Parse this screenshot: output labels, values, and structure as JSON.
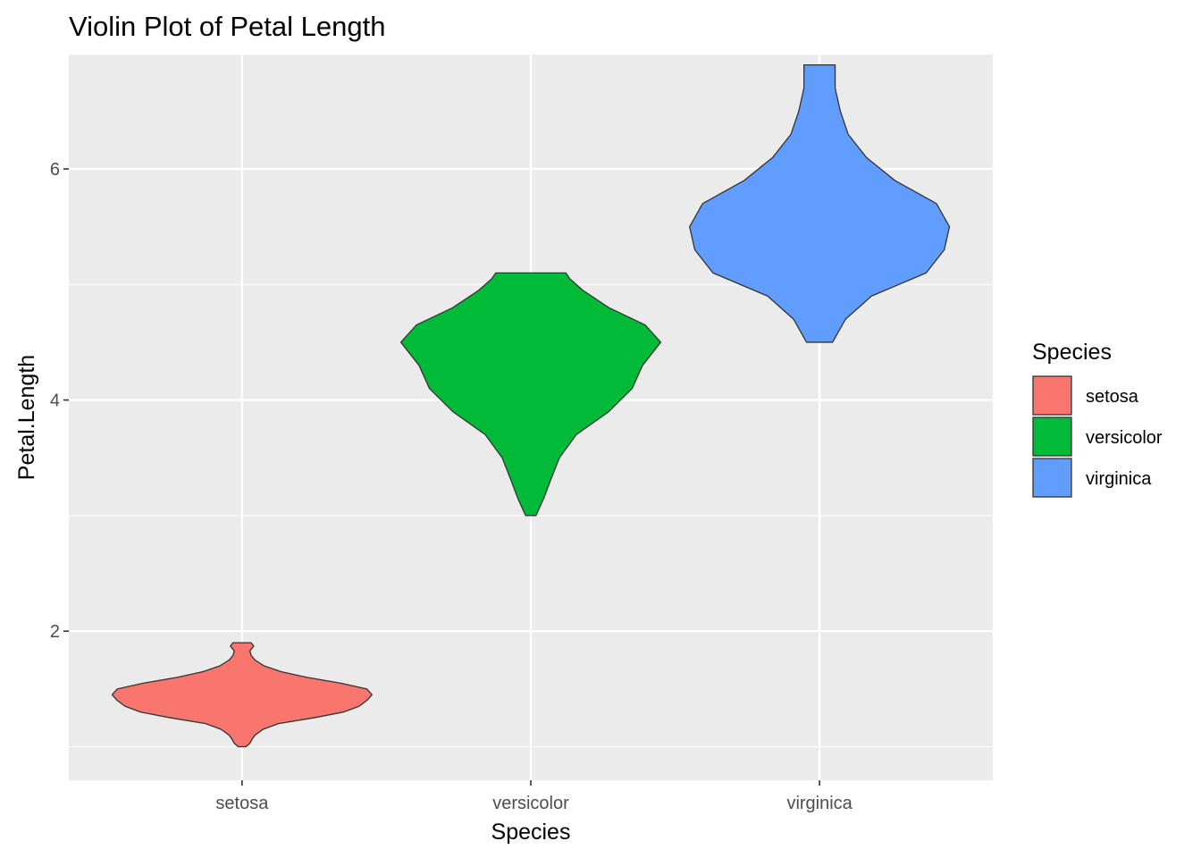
{
  "chart_data": {
    "type": "violin",
    "title": "Violin Plot of Petal Length",
    "xlabel": "Species",
    "ylabel": "Petal.Length",
    "ylim": [
      0.71,
      6.99
    ],
    "yticks": [
      2,
      4,
      6
    ],
    "grid": true,
    "legend": {
      "title": "Species",
      "placement": "right"
    },
    "categories": [
      "setosa",
      "versicolor",
      "virginica"
    ],
    "series": [
      {
        "name": "setosa",
        "color": "#F8766D",
        "density": [
          [
            1.0,
            0.03
          ],
          [
            1.03,
            0.06
          ],
          [
            1.07,
            0.08
          ],
          [
            1.1,
            0.1
          ],
          [
            1.15,
            0.16
          ],
          [
            1.2,
            0.28
          ],
          [
            1.25,
            0.55
          ],
          [
            1.3,
            0.78
          ],
          [
            1.35,
            0.9
          ],
          [
            1.4,
            0.96
          ],
          [
            1.45,
            1.0
          ],
          [
            1.5,
            0.96
          ],
          [
            1.55,
            0.76
          ],
          [
            1.6,
            0.5
          ],
          [
            1.65,
            0.3
          ],
          [
            1.7,
            0.17
          ],
          [
            1.75,
            0.1
          ],
          [
            1.79,
            0.07
          ],
          [
            1.83,
            0.06
          ],
          [
            1.87,
            0.09
          ],
          [
            1.9,
            0.07
          ]
        ]
      },
      {
        "name": "versicolor",
        "color": "#00BA38",
        "density": [
          [
            3.0,
            0.04
          ],
          [
            3.15,
            0.1
          ],
          [
            3.3,
            0.15
          ],
          [
            3.5,
            0.22
          ],
          [
            3.7,
            0.35
          ],
          [
            3.9,
            0.6
          ],
          [
            4.1,
            0.78
          ],
          [
            4.3,
            0.86
          ],
          [
            4.5,
            1.0
          ],
          [
            4.65,
            0.88
          ],
          [
            4.8,
            0.6
          ],
          [
            4.95,
            0.4
          ],
          [
            5.05,
            0.3
          ],
          [
            5.1,
            0.27
          ]
        ]
      },
      {
        "name": "virginica",
        "color": "#619CFF",
        "density": [
          [
            4.5,
            0.1
          ],
          [
            4.7,
            0.2
          ],
          [
            4.9,
            0.4
          ],
          [
            5.1,
            0.82
          ],
          [
            5.3,
            0.96
          ],
          [
            5.5,
            1.0
          ],
          [
            5.7,
            0.9
          ],
          [
            5.9,
            0.58
          ],
          [
            6.1,
            0.36
          ],
          [
            6.3,
            0.22
          ],
          [
            6.5,
            0.16
          ],
          [
            6.7,
            0.12
          ],
          [
            6.9,
            0.12
          ]
        ]
      }
    ]
  }
}
